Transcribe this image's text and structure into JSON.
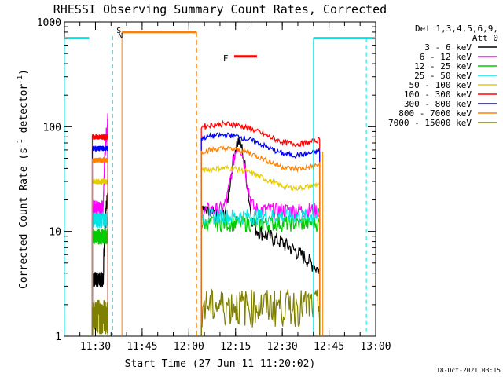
{
  "chart_data": {
    "type": "line",
    "title": "RHESSI Observing Summary Count Rates, Corrected",
    "xlabel": "Start Time (27-Jun-11 11:20:02)",
    "ylabel_main": "Corrected Count Rate (s",
    "ylabel_sup1": "-1",
    "ylabel_mid": " detector",
    "ylabel_sup2": "-1",
    "ylabel_end": ")",
    "yscale": "log",
    "ylim": [
      1,
      1000
    ],
    "xlim": [
      "11:20:02",
      "13:00:00"
    ],
    "x_ticks": [
      "11:30",
      "11:45",
      "12:00",
      "12:15",
      "12:30",
      "12:45",
      "13:00"
    ],
    "y_ticks": [
      "1",
      "10",
      "100",
      "1000"
    ],
    "timestamp": "18-Oct-2021 03:15",
    "legend_header": [
      "Det 1,3,4,5,6,9,",
      "Att 0"
    ],
    "flags": {
      "S": "S",
      "N": "N",
      "F": "F"
    },
    "series": [
      {
        "name": "3 - 6 keV",
        "color": "#000000",
        "seg1_level": 3.5,
        "seg2_level": 12
      },
      {
        "name": "6 - 12 keV",
        "color": "#ff00ff",
        "seg1_level": 17,
        "seg2_level": 16
      },
      {
        "name": "12 - 25 keV",
        "color": "#00cc00",
        "seg1_level": 9,
        "seg2_level": 12
      },
      {
        "name": "25 - 50 keV",
        "color": "#00e5e5",
        "seg1_level": 13,
        "seg2_level": 14
      },
      {
        "name": "50 - 100 keV",
        "color": "#e5cc00",
        "seg1_level": 30,
        "seg2_level": 38
      },
      {
        "name": "100 - 300 keV",
        "color": "#ff0000",
        "seg1_level": 80,
        "seg2_level": 100
      },
      {
        "name": "300 - 800 keV",
        "color": "#0000ff",
        "seg1_level": 62,
        "seg2_level": 78
      },
      {
        "name": "800 - 7000 keV",
        "color": "#ff8000",
        "seg1_level": 48,
        "seg2_level": 58
      },
      {
        "name": "7000 - 15000 keV",
        "color": "#808000",
        "seg1_level": 1.6,
        "seg2_level": 2.0
      }
    ],
    "segments": [
      {
        "start": "11:29:00",
        "end": "11:34:00"
      },
      {
        "start": "12:04:00",
        "end": "12:42:00"
      }
    ],
    "flare_peak": {
      "time": "12:16:00",
      "value": 60
    },
    "saa_level": 700,
    "night_level": 800,
    "grid": false,
    "legend_position": "right"
  }
}
